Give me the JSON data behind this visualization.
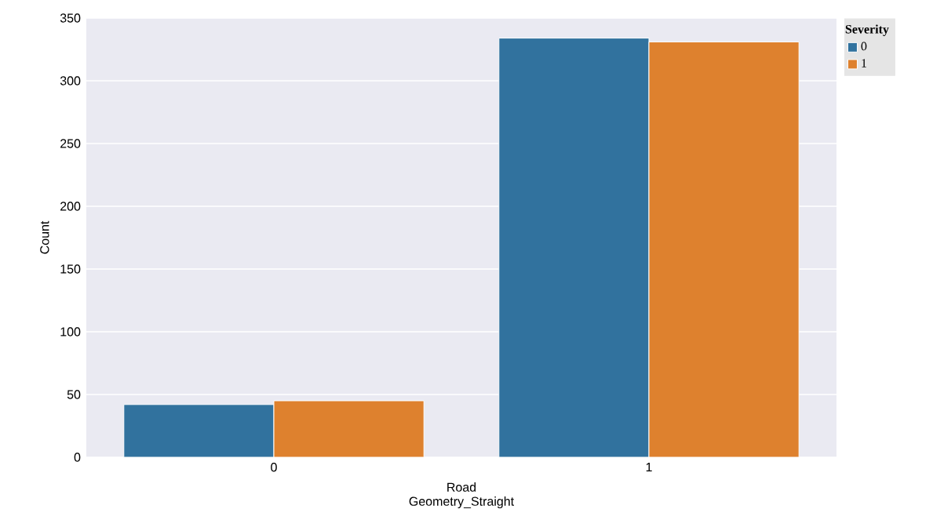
{
  "chart_data": {
    "type": "bar",
    "xlabel": "Road Geometry_Straight",
    "ylabel": "Count",
    "legend_title": "Severity",
    "categories": [
      "0",
      "1"
    ],
    "series": [
      {
        "name": "0",
        "color": "#31729e",
        "values": [
          42,
          334
        ]
      },
      {
        "name": "1",
        "color": "#de812e",
        "values": [
          45,
          331
        ]
      }
    ],
    "ylim": [
      0,
      350
    ],
    "yticks": [
      0,
      50,
      100,
      150,
      200,
      250,
      300,
      350
    ],
    "grid": "y",
    "legend": "top right"
  }
}
